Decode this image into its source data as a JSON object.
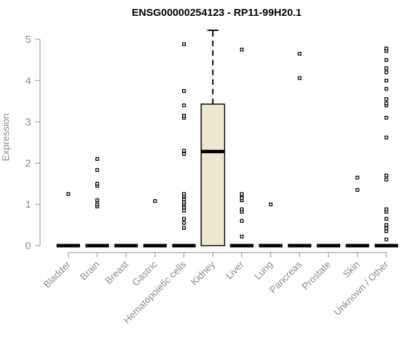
{
  "chart_data": {
    "type": "box",
    "title": "ENSG00000254123 - RP11-99H20.1",
    "xlabel": "",
    "ylabel": "Expression",
    "ylim": [
      0,
      5.2
    ],
    "yticks": [
      0,
      1,
      2,
      3,
      4,
      5
    ],
    "categories": [
      "Bladder",
      "Brain",
      "Breast",
      "Gastric",
      "Hematopoietic cells",
      "Kidney",
      "Liver",
      "Lung",
      "Pancreas",
      "Prostate",
      "Skin",
      "Unknown / Other"
    ],
    "boxes": [
      {
        "category": "Bladder",
        "q1": 0,
        "median": 0,
        "q3": 0,
        "whisker_low": 0,
        "whisker_high": 0,
        "outliers": [
          1.25
        ]
      },
      {
        "category": "Brain",
        "q1": 0,
        "median": 0,
        "q3": 0,
        "whisker_low": 0,
        "whisker_high": 0,
        "outliers": [
          0.95,
          1.0,
          1.1,
          1.45,
          1.5,
          1.83,
          2.1
        ]
      },
      {
        "category": "Breast",
        "q1": 0,
        "median": 0,
        "q3": 0,
        "whisker_low": 0,
        "whisker_high": 0,
        "outliers": []
      },
      {
        "category": "Gastric",
        "q1": 0,
        "median": 0,
        "q3": 0,
        "whisker_low": 0,
        "whisker_high": 0,
        "outliers": [
          1.08
        ]
      },
      {
        "category": "Hematopoietic cells",
        "q1": 0,
        "median": 0,
        "q3": 0,
        "whisker_low": 0,
        "whisker_high": 0,
        "outliers": [
          0.43,
          0.55,
          0.65,
          0.85,
          0.92,
          1.0,
          1.05,
          1.12,
          1.2,
          1.25,
          2.22,
          2.3,
          3.1,
          3.15,
          3.4,
          3.75,
          4.88
        ]
      },
      {
        "category": "Kidney",
        "q1": 0,
        "median": 2.28,
        "q3": 3.43,
        "whisker_low": 0,
        "whisker_high": 5.22,
        "outliers": []
      },
      {
        "category": "Liver",
        "q1": 0,
        "median": 0,
        "q3": 0,
        "whisker_low": 0,
        "whisker_high": 0,
        "outliers": [
          0.22,
          0.6,
          0.82,
          0.88,
          1.1,
          1.15,
          1.22,
          1.25,
          4.75
        ]
      },
      {
        "category": "Lung",
        "q1": 0,
        "median": 0,
        "q3": 0,
        "whisker_low": 0,
        "whisker_high": 0,
        "outliers": [
          1.0
        ]
      },
      {
        "category": "Pancreas",
        "q1": 0,
        "median": 0,
        "q3": 0,
        "whisker_low": 0,
        "whisker_high": 0,
        "outliers": [
          4.06,
          4.65
        ]
      },
      {
        "category": "Prostate",
        "q1": 0,
        "median": 0,
        "q3": 0,
        "whisker_low": 0,
        "whisker_high": 0,
        "outliers": []
      },
      {
        "category": "Skin",
        "q1": 0,
        "median": 0,
        "q3": 0,
        "whisker_low": 0,
        "whisker_high": 0,
        "outliers": [
          1.35,
          1.65
        ]
      },
      {
        "category": "Unknown / Other",
        "q1": 0,
        "median": 0,
        "q3": 0,
        "whisker_low": 0,
        "whisker_high": 0,
        "outliers": [
          0.15,
          0.35,
          0.42,
          0.5,
          0.65,
          0.82,
          0.88,
          1.6,
          1.7,
          2.62,
          3.1,
          3.4,
          3.45,
          3.55,
          3.8,
          4.0,
          4.2,
          4.3,
          4.5,
          4.72,
          4.78
        ]
      }
    ],
    "colors": {
      "box_fill": "#efe8d0",
      "box_stroke": "#000000",
      "axis": "#8c8c8c"
    },
    "grid": false,
    "legend": "none"
  }
}
